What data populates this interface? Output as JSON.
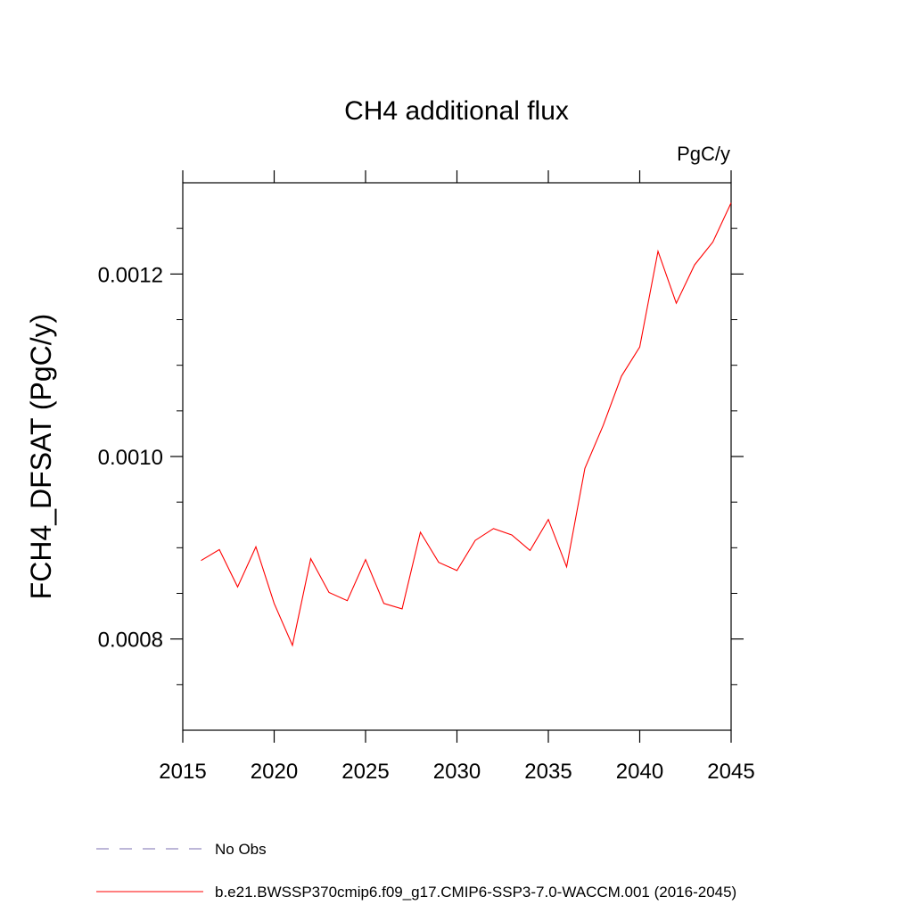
{
  "chart_data": {
    "type": "line",
    "title": "CH4 additional flux",
    "units_label": "PgC/y",
    "xlabel": "",
    "ylabel": "FCH4_DFSAT  (PgC/y)",
    "xlim": [
      2015,
      2045
    ],
    "ylim": [
      0.0007,
      0.0013
    ],
    "x_ticks": [
      2015,
      2020,
      2025,
      2030,
      2035,
      2040,
      2045
    ],
    "x_tick_labels": [
      "2015",
      "2020",
      "2025",
      "2030",
      "2035",
      "2040",
      "2045"
    ],
    "y_ticks": [
      0.0008,
      0.001,
      0.0012
    ],
    "y_tick_labels": [
      "0.0008",
      "0.0010",
      "0.0012"
    ],
    "y_minor_step": 5e-05,
    "x_minor_step": 1,
    "grid": false,
    "legend_position": "bottom-left",
    "series": [
      {
        "name": "No Obs",
        "color": "#7b6fb0",
        "style": "dashed",
        "x": [],
        "y": []
      },
      {
        "name": "b.e21.BWSSP370cmip6.f09_g17.CMIP6-SSP3-7.0-WACCM.001 (2016-2045)",
        "color": "#ff0000",
        "style": "solid",
        "x": [
          2016,
          2017,
          2018,
          2019,
          2020,
          2021,
          2022,
          2023,
          2024,
          2025,
          2026,
          2027,
          2028,
          2029,
          2030,
          2031,
          2032,
          2033,
          2034,
          2035,
          2036,
          2037,
          2038,
          2039,
          2040,
          2041,
          2042,
          2043,
          2044,
          2045
        ],
        "y": [
          0.000886,
          0.000898,
          0.000857,
          0.000901,
          0.000839,
          0.000793,
          0.000888,
          0.000851,
          0.000842,
          0.000887,
          0.000839,
          0.000833,
          0.000917,
          0.000884,
          0.000875,
          0.000908,
          0.000921,
          0.000914,
          0.000897,
          0.000931,
          0.000879,
          0.000987,
          0.001034,
          0.001088,
          0.00112,
          0.001225,
          0.001168,
          0.00121,
          0.001235,
          0.001278
        ]
      }
    ]
  }
}
